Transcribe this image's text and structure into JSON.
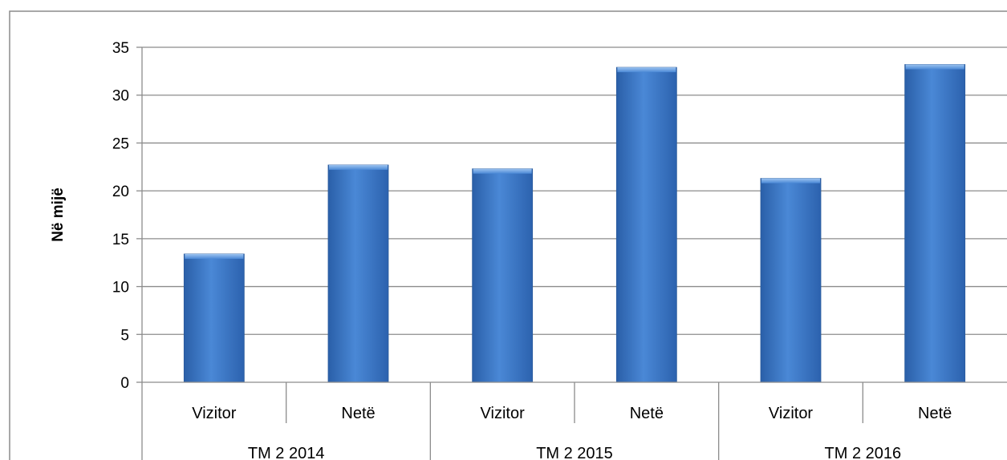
{
  "chart_data": {
    "type": "bar",
    "ylabel": "Në mijë",
    "ylim": [
      0,
      35
    ],
    "yticks": [
      0,
      5,
      10,
      15,
      20,
      25,
      30,
      35
    ],
    "grid": true,
    "legend": "none",
    "bar_color": "#3A75C4",
    "categories": [
      {
        "label": "Vizitor",
        "group": "TM 2 2014"
      },
      {
        "label": "Netë",
        "group": "TM 2 2014"
      },
      {
        "label": "Vizitor",
        "group": "TM 2 2015"
      },
      {
        "label": "Netë",
        "group": "TM 2 2015"
      },
      {
        "label": "Vizitor",
        "group": "TM 2 2016"
      },
      {
        "label": "Netë",
        "group": "TM 2 2016"
      }
    ],
    "groups": [
      "TM 2 2014",
      "TM 2 2015",
      "TM 2 2016"
    ],
    "values": [
      13.4,
      22.7,
      22.3,
      32.9,
      21.3,
      33.2
    ]
  }
}
